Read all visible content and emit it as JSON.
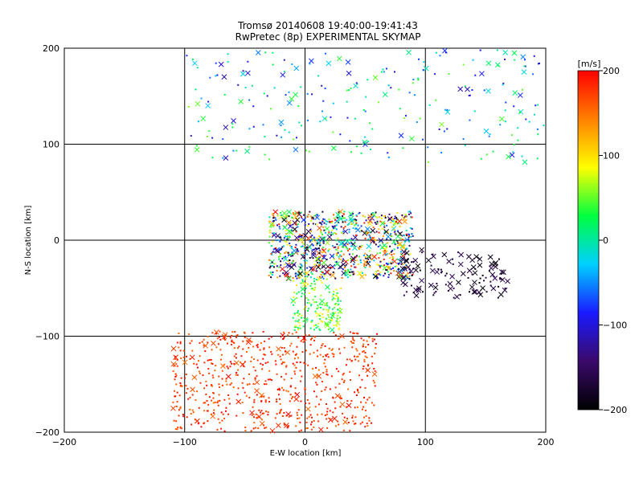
{
  "chart_data": {
    "type": "scatter",
    "title": "Tromsø 20140608 19:40:00-19:41:43",
    "subtitle": "RwPretec (8p) EXPERIMENTAL SKYMAP",
    "xlabel": "E-W location [km]",
    "ylabel": "N-S location [km]",
    "xlim": [
      -200,
      200
    ],
    "ylim": [
      -200,
      200
    ],
    "xticks": [
      "-200",
      "-100",
      "0",
      "100",
      "200"
    ],
    "yticks": [
      "-200",
      "-100",
      "0",
      "100",
      "200"
    ],
    "grid": true,
    "colorbar": {
      "label": "[m/s]",
      "range": [
        -200,
        200
      ],
      "ticks": [
        "200",
        "100",
        "0",
        "-100",
        "-200"
      ],
      "colormap": [
        "#000000",
        "#3a0a6a",
        "#1a1aff",
        "#00d0ff",
        "#00ff40",
        "#ffff00",
        "#ff8000",
        "#ff0000"
      ]
    },
    "marker_types": [
      "x (cross)",
      "dot"
    ],
    "clusters": [
      {
        "region": "central echo band",
        "x_range": [
          -30,
          90
        ],
        "y_range": [
          -40,
          30
        ],
        "velocity_range": [
          -200,
          200
        ],
        "dominant": "mixed red / green / cyan / black"
      },
      {
        "region": "southern echo region",
        "x_range": [
          -110,
          60
        ],
        "y_range": [
          -200,
          -95
        ],
        "velocity_range": [
          150,
          200
        ],
        "dominant": "red"
      },
      {
        "region": "northern sparse region",
        "x_range": [
          -100,
          200
        ],
        "y_range": [
          80,
          200
        ],
        "velocity_range": [
          -120,
          60
        ],
        "dominant": "blue / cyan"
      },
      {
        "region": "eastern band",
        "x_range": [
          80,
          170
        ],
        "y_range": [
          -60,
          -10
        ],
        "velocity_range": [
          -200,
          -150
        ],
        "dominant": "black"
      },
      {
        "region": "column south of origin",
        "x_range": [
          -10,
          30
        ],
        "y_range": [
          -95,
          -40
        ],
        "velocity_range": [
          0,
          100
        ],
        "dominant": "green / yellow"
      }
    ]
  }
}
